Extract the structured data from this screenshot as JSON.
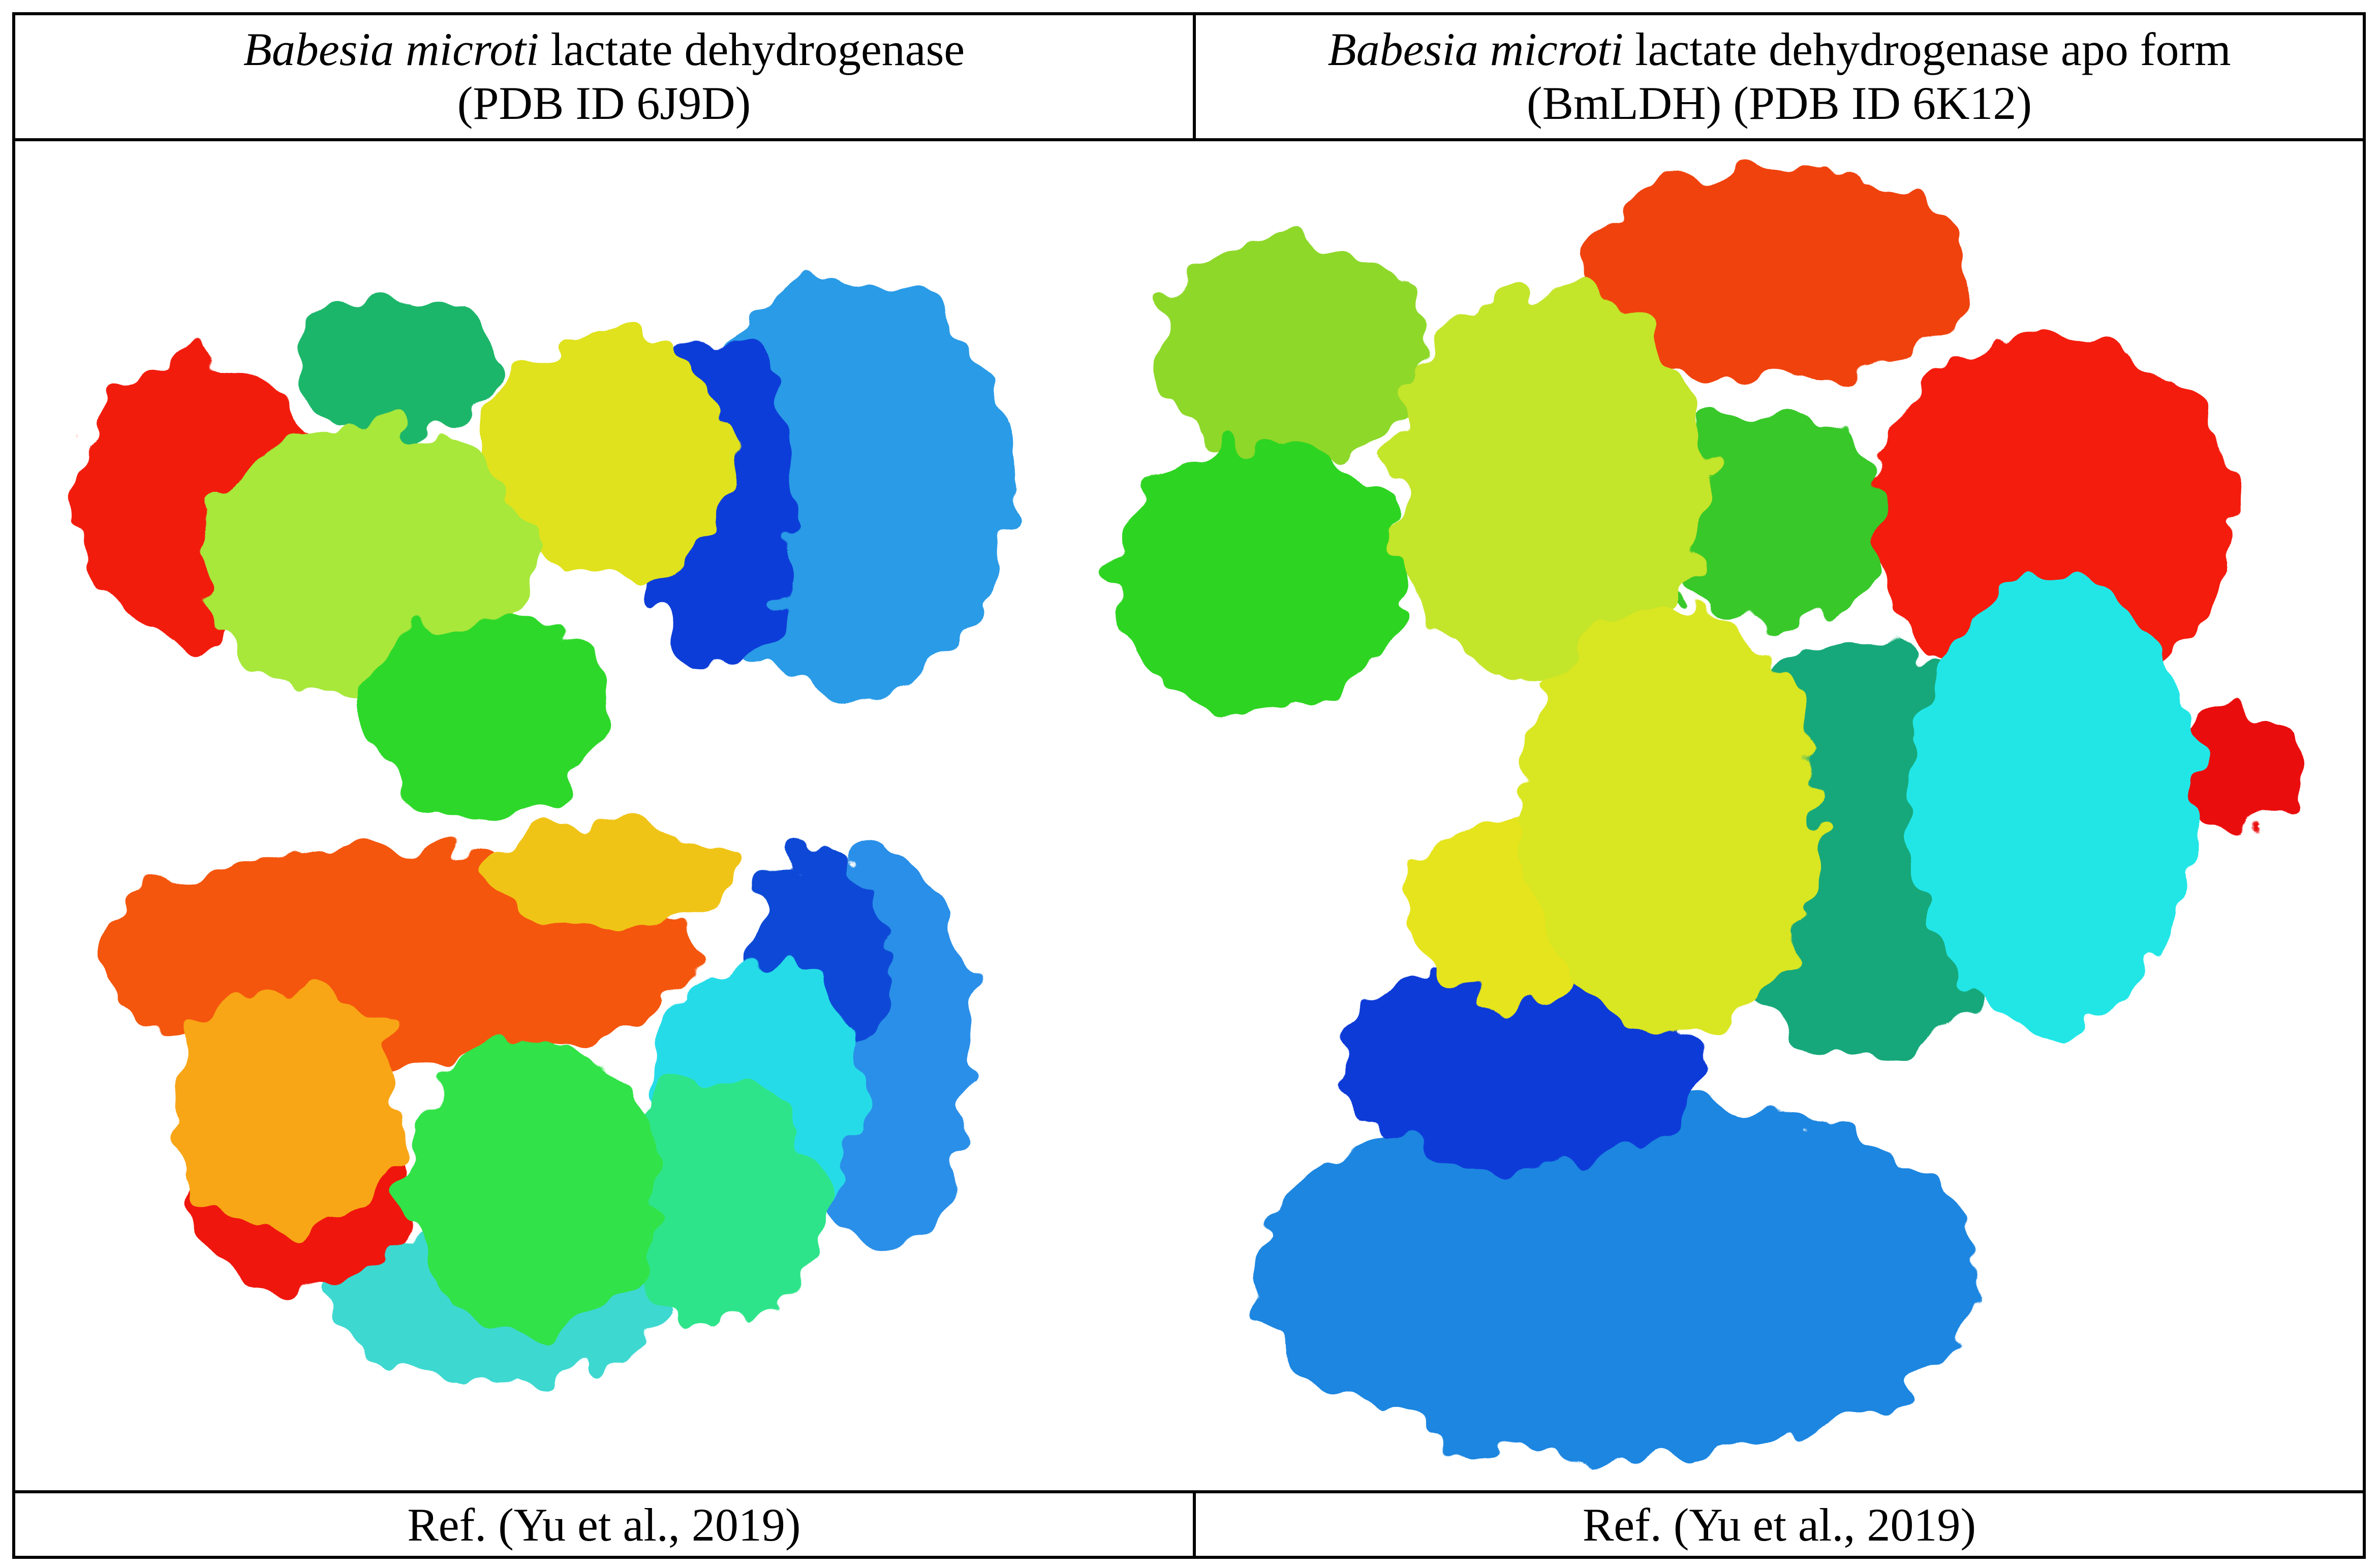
{
  "table": {
    "headers": [
      {
        "species": "Babesia microti",
        "text": "lactate dehydrogenase (PDB ID 6J9D)"
      },
      {
        "species": "Babesia microti",
        "text": "lactate dehydrogenase apo form (BmLDH) (PDB ID 6K12)"
      }
    ],
    "references": [
      "Ref. (Yu et al., 2019)",
      "Ref. (Yu et al., 2019)"
    ]
  }
}
